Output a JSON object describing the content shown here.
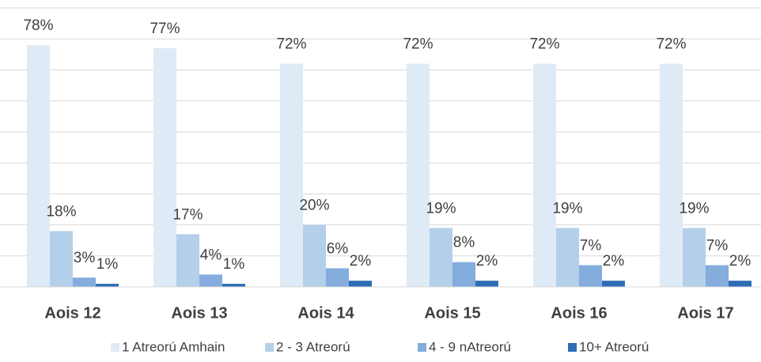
{
  "chart_data": {
    "type": "bar",
    "categories": [
      "Aois 12",
      "Aois 13",
      "Aois 14",
      "Aois 15",
      "Aois 16",
      "Aois 17"
    ],
    "series": [
      {
        "name": "1 Atreorú Amhain",
        "color": "#deebf7",
        "values": [
          78,
          77,
          72,
          72,
          72,
          72
        ],
        "value_labels": [
          "78%",
          "77%",
          "72%",
          "72%",
          "72%",
          "72%"
        ]
      },
      {
        "name": "2 - 3 Atreorú",
        "color": "#b4cfea",
        "values": [
          18,
          17,
          20,
          19,
          19,
          19
        ],
        "value_labels": [
          "18%",
          "17%",
          "20%",
          "19%",
          "19%",
          "19%"
        ]
      },
      {
        "name": "4 - 9 nAtreorú",
        "color": "#84acdc",
        "values": [
          3,
          4,
          6,
          8,
          7,
          7
        ],
        "value_labels": [
          "3%",
          "4%",
          "6%",
          "8%",
          "7%",
          "7%"
        ]
      },
      {
        "name": "10+ Atreorú",
        "color": "#2e6db4",
        "values": [
          1,
          1,
          2,
          2,
          2,
          2
        ],
        "value_labels": [
          "1%",
          "1%",
          "2%",
          "2%",
          "2%",
          "2%"
        ]
      }
    ],
    "ylim": [
      0,
      90
    ],
    "yticks": [
      0,
      10,
      20,
      30,
      40,
      50,
      60,
      70,
      80,
      90
    ],
    "grid": true,
    "legend": "bottom"
  }
}
